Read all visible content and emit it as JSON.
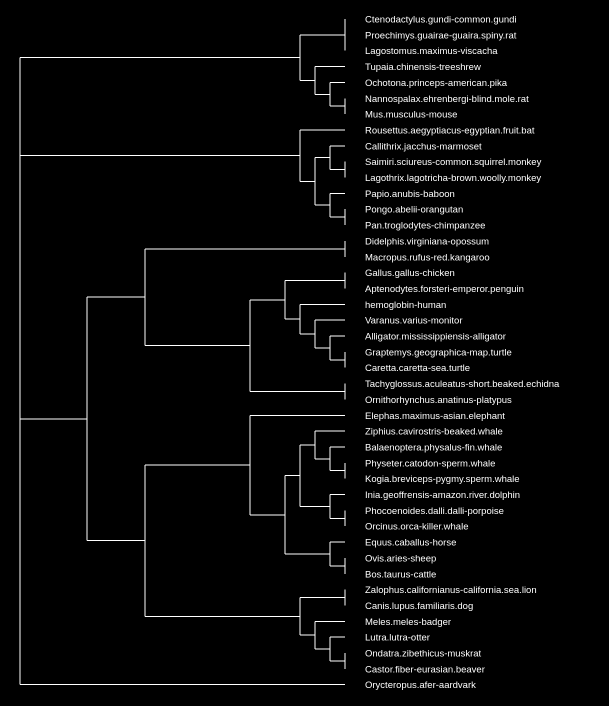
{
  "colors": {
    "background": "#000000",
    "branch": "#ffffff",
    "label": "#ffffff"
  },
  "leaves": [
    "Ctenodactylus.gundi-common.gundi",
    "Proechimys.guairae-guaira.spiny.rat",
    "Lagostomus.maximus-viscacha",
    "Tupaia.chinensis-treeshrew",
    "Ochotona.princeps-american.pika",
    "Nannospalax.ehrenbergi-blind.mole.rat",
    "Mus.musculus-mouse",
    "Rousettus.aegyptiacus-egyptian.fruit.bat",
    "Callithrix.jacchus-marmoset",
    "Saimiri.sciureus-common.squirrel.monkey",
    "Lagothrix.lagotricha-brown.woolly.monkey",
    "Papio.anubis-baboon",
    "Pongo.abelii-orangutan",
    "Pan.troglodytes-chimpanzee",
    "Didelphis.virginiana-opossum",
    "Macropus.rufus-red.kangaroo",
    "Gallus.gallus-chicken",
    "Aptenodytes.forsteri-emperor.penguin",
    "hemoglobin-human",
    "Varanus.varius-monitor",
    "Alligator.mississippiensis-alligator",
    "Graptemys.geographica-map.turtle",
    "Caretta.caretta-sea.turtle",
    "Tachyglossus.aculeatus-short.beaked.echidna",
    "Ornithorhynchus.anatinus-platypus",
    "Elephas.maximus-asian.elephant",
    "Ziphius.cavirostris-beaked.whale",
    "Balaenoptera.physalus-fin.whale",
    "Physeter.catodon-sperm.whale",
    "Kogia.breviceps-pygmy.sperm.whale",
    "Inia.geoffrensis-amazon.river.dolphin",
    "Phocoenoides.dalli.dalli-porpoise",
    "Orcinus.orca-killer.whale",
    "Equus.caballus-horse",
    "Ovis.aries-sheep",
    "Bos.taurus-cattle",
    "Zalophus.californianus-california.sea.lion",
    "Canis.lupus.familiaris.dog",
    "Meles.meles-badger",
    "Lutra.lutra-otter",
    "Ondatra.zibethicus-muskrat",
    "Castor.fiber-eurasian.beaver",
    "Orycteropus.afer-aardvark"
  ],
  "tree": [
    [
      [
        0,
        1,
        2
      ],
      [
        3,
        [
          4,
          [
            5,
            6
          ]
        ]
      ]
    ],
    [
      [
        7,
        [
          [
            8,
            [
              9,
              10
            ]
          ],
          [
            11,
            [
              12,
              13
            ]
          ]
        ]
      ],
      [
        [
          [
            14,
            15
          ],
          [
            [
              [
                16,
                17
              ],
              [
                18,
                [
                  19,
                  [
                    20,
                    [
                      21,
                      22
                    ]
                  ]
                ]
              ]
            ],
            [
              23,
              24
            ]
          ]
        ],
        [
          [
            25,
            [
              [
                [
                  26,
                  [
                    27,
                    [
                      28,
                      29
                    ]
                  ]
                ],
                [
                  30,
                  [
                    31,
                    32
                  ]
                ]
              ],
              [
                33,
                [
                  34,
                  35
                ]
              ]
            ]
          ],
          [
            [
              36,
              37
            ],
            [
              38,
              [
                39,
                [
                  40,
                  41
                ]
              ]
            ]
          ]
        ]
      ]
    ],
    42
  ]
}
